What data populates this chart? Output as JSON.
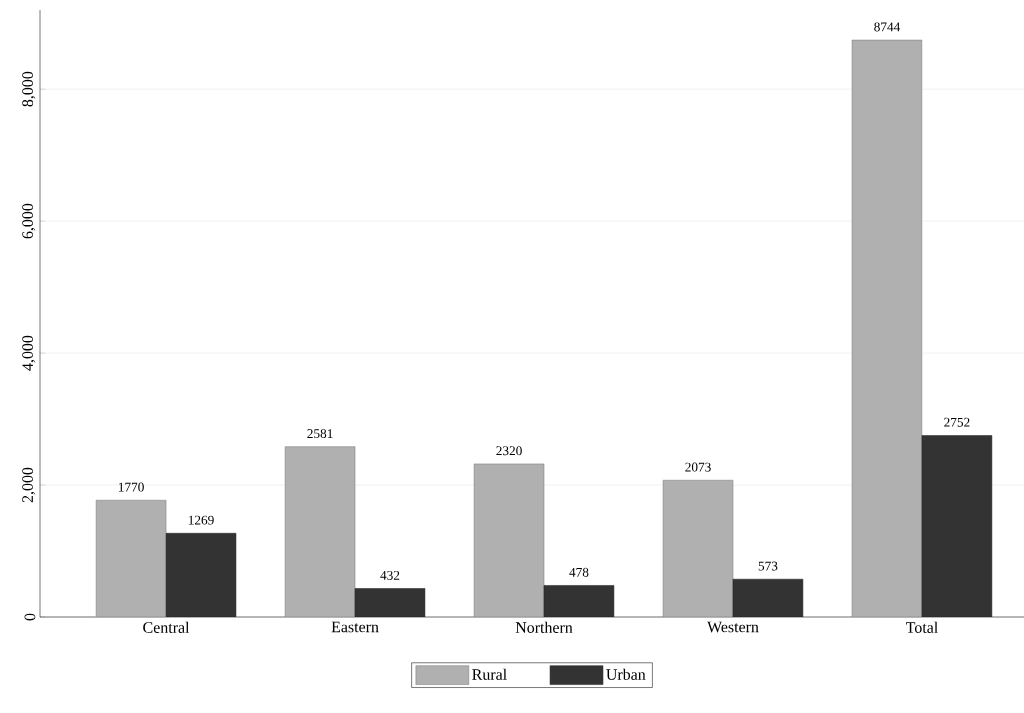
{
  "chart_data": {
    "type": "bar",
    "categories": [
      "Central",
      "Eastern",
      "Northern",
      "Western",
      "Total"
    ],
    "series": [
      {
        "name": "Rural",
        "color": "#b0b0b0",
        "values": [
          1770,
          2581,
          2320,
          2073,
          8744
        ]
      },
      {
        "name": "Urban",
        "color": "#333333",
        "values": [
          1269,
          432,
          478,
          573,
          2752
        ]
      }
    ],
    "ylim": [
      0,
      9200
    ],
    "yticks": [
      0,
      {
        "value": 2000,
        "label": "2,000"
      },
      {
        "value": 4000,
        "label": "4,000"
      },
      {
        "value": 6000,
        "label": "6,000"
      },
      {
        "value": 8000,
        "label": "8,000"
      }
    ],
    "grid": "y",
    "legend": "bottom",
    "data_labels": true
  }
}
